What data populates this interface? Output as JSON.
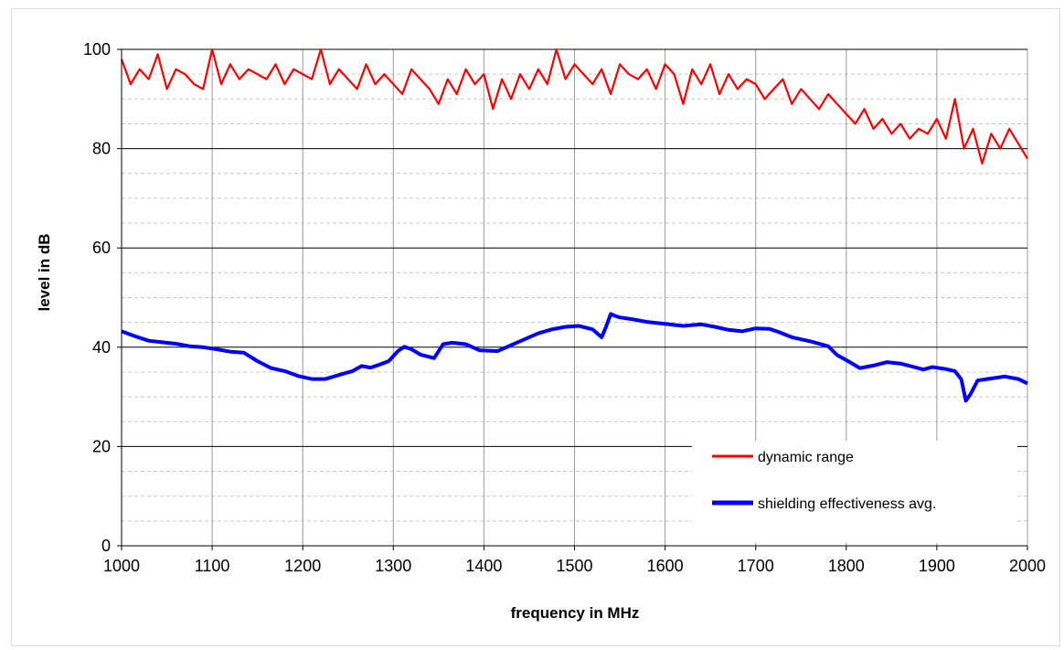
{
  "chart_data": {
    "type": "line",
    "title": "",
    "xlabel": "frequency in MHz",
    "ylabel": "level in dB",
    "xlim": [
      1000,
      2000
    ],
    "ylim": [
      0,
      100
    ],
    "x_ticks": [
      1000,
      1100,
      1200,
      1300,
      1400,
      1500,
      1600,
      1700,
      1800,
      1900,
      2000
    ],
    "y_ticks": [
      0,
      20,
      40,
      60,
      80,
      100
    ],
    "grid": true,
    "legend_position": "bottom-right",
    "series": [
      {
        "name": "dynamic range",
        "color": "#ff0000",
        "x": [
          1000,
          1010,
          1020,
          1030,
          1040,
          1050,
          1060,
          1070,
          1080,
          1090,
          1100,
          1110,
          1120,
          1130,
          1140,
          1150,
          1160,
          1170,
          1180,
          1190,
          1200,
          1210,
          1220,
          1230,
          1240,
          1250,
          1260,
          1270,
          1280,
          1290,
          1300,
          1310,
          1320,
          1330,
          1340,
          1350,
          1360,
          1370,
          1380,
          1390,
          1400,
          1410,
          1420,
          1430,
          1440,
          1450,
          1460,
          1470,
          1480,
          1490,
          1500,
          1510,
          1520,
          1530,
          1540,
          1550,
          1560,
          1570,
          1580,
          1590,
          1600,
          1610,
          1620,
          1630,
          1640,
          1650,
          1660,
          1670,
          1680,
          1690,
          1700,
          1710,
          1720,
          1730,
          1740,
          1750,
          1760,
          1770,
          1780,
          1790,
          1800,
          1810,
          1820,
          1830,
          1840,
          1850,
          1860,
          1870,
          1880,
          1890,
          1900,
          1910,
          1920,
          1930,
          1940,
          1950,
          1960,
          1970,
          1980,
          1990,
          2000
        ],
        "y": [
          98,
          93,
          96,
          94,
          99,
          92,
          96,
          95,
          93,
          92,
          100,
          93,
          97,
          94,
          96,
          95,
          94,
          97,
          93,
          96,
          95,
          94,
          100,
          93,
          96,
          94,
          92,
          97,
          93,
          95,
          93,
          91,
          96,
          94,
          92,
          89,
          94,
          91,
          96,
          93,
          95,
          88,
          94,
          90,
          95,
          92,
          96,
          93,
          100,
          94,
          97,
          95,
          93,
          96,
          91,
          97,
          95,
          94,
          96,
          92,
          97,
          95,
          89,
          96,
          93,
          97,
          91,
          95,
          92,
          94,
          93,
          90,
          92,
          94,
          89,
          92,
          90,
          88,
          91,
          89,
          87,
          85,
          88,
          84,
          86,
          83,
          85,
          82,
          84,
          83,
          86,
          82,
          90,
          80,
          84,
          77,
          83,
          80,
          84,
          81,
          78
        ]
      },
      {
        "name": "shielding effectiveness avg.",
        "color": "#0000ff",
        "x": [
          1000,
          1015,
          1030,
          1045,
          1060,
          1075,
          1090,
          1105,
          1120,
          1135,
          1150,
          1165,
          1180,
          1195,
          1210,
          1225,
          1240,
          1255,
          1265,
          1275,
          1285,
          1295,
          1305,
          1312,
          1320,
          1330,
          1345,
          1355,
          1365,
          1380,
          1395,
          1405,
          1415,
          1430,
          1445,
          1460,
          1475,
          1490,
          1505,
          1520,
          1530,
          1535,
          1540,
          1545,
          1550,
          1565,
          1580,
          1600,
          1620,
          1640,
          1655,
          1670,
          1685,
          1700,
          1715,
          1725,
          1740,
          1760,
          1780,
          1790,
          1800,
          1815,
          1830,
          1845,
          1860,
          1875,
          1885,
          1895,
          1910,
          1920,
          1927,
          1932,
          1937,
          1945,
          1960,
          1975,
          1990,
          2000
        ],
        "y": [
          43.2,
          42.2,
          41.3,
          41,
          40.7,
          40.2,
          40,
          39.6,
          39.1,
          38.9,
          37.2,
          35.8,
          35.2,
          34.2,
          33.6,
          33.6,
          34.4,
          35.2,
          36.2,
          35.9,
          36.5,
          37.2,
          39.2,
          40.1,
          39.6,
          38.5,
          37.8,
          40.6,
          40.9,
          40.6,
          39.4,
          39.3,
          39.2,
          40.4,
          41.6,
          42.8,
          43.6,
          44.1,
          44.3,
          43.6,
          42,
          44.2,
          46.7,
          46.3,
          46,
          45.6,
          45.1,
          44.7,
          44.3,
          44.6,
          44.1,
          43.5,
          43.2,
          43.8,
          43.7,
          43.1,
          42,
          41.2,
          40.2,
          38.4,
          37.4,
          35.8,
          36.3,
          37,
          36.7,
          36,
          35.5,
          36,
          35.6,
          35.2,
          33.5,
          29.2,
          30.5,
          33.3,
          33.7,
          34.1,
          33.6,
          32.7
        ]
      }
    ]
  }
}
